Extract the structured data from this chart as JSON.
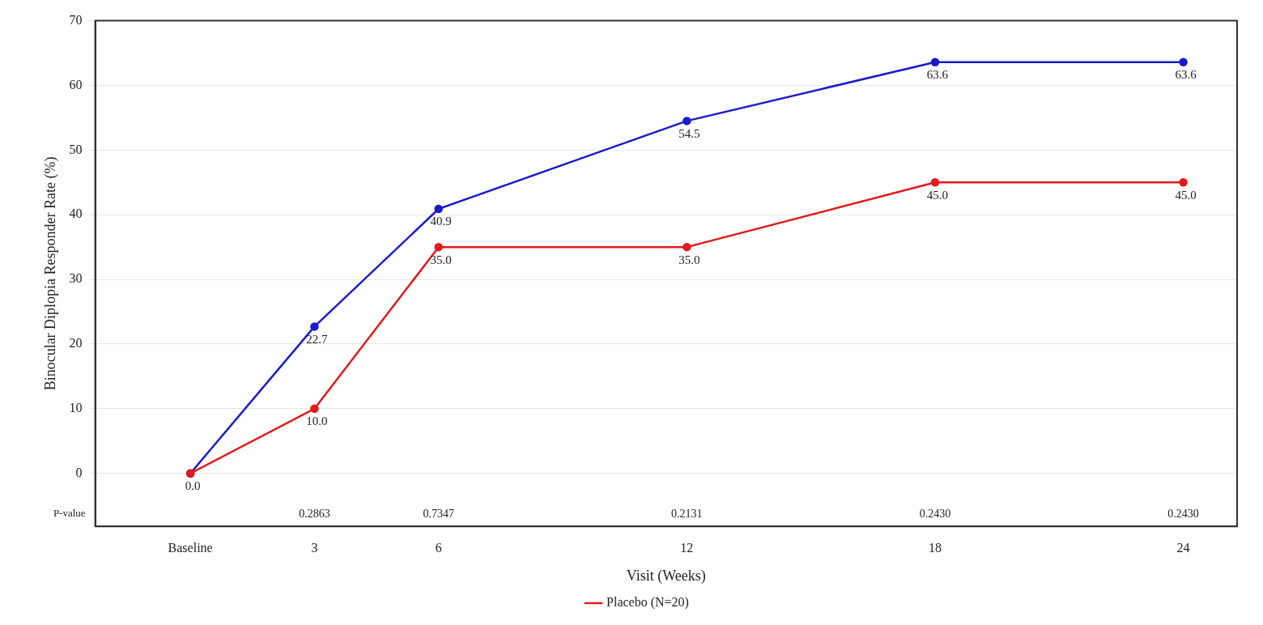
{
  "chart_data": {
    "type": "line",
    "xlabel": "Visit (Weeks)",
    "ylabel": "Binocular Diplopia Responder Rate (%)",
    "x": [
      0,
      3,
      6,
      12,
      18,
      24
    ],
    "series": [
      {
        "name": "Placebo (N=20)",
        "color": "#e41a1c",
        "values": [
          0.0,
          10.0,
          35.0,
          35.0,
          45.0,
          45.0
        ],
        "value_labels": [
          "0.0",
          "10.0",
          "35.0",
          "35.0",
          "45.0",
          "45.0"
        ]
      },
      {
        "color": "#1a1acd",
        "values": [
          0.0,
          22.7,
          40.9,
          54.5,
          63.6,
          63.6
        ],
        "value_labels": [
          null,
          "22.7",
          "40.9",
          "54.5",
          "63.6",
          "63.6"
        ]
      }
    ],
    "xlim": [
      -2.3,
      25.3
    ],
    "xticks": [
      {
        "value": 0,
        "label": "Baseline"
      },
      3,
      6,
      12,
      18,
      24
    ],
    "ylim": [
      -8.2,
      70
    ],
    "yticks": [
      0,
      10,
      20,
      30,
      40,
      50,
      60,
      70
    ],
    "grid": "y",
    "legend": "bottom",
    "marker": "circle",
    "line_style": "solid",
    "annotations": [
      "P-value",
      "0.2863",
      "0.7347",
      "0.2131",
      "0.2430",
      "0.2430"
    ]
  }
}
